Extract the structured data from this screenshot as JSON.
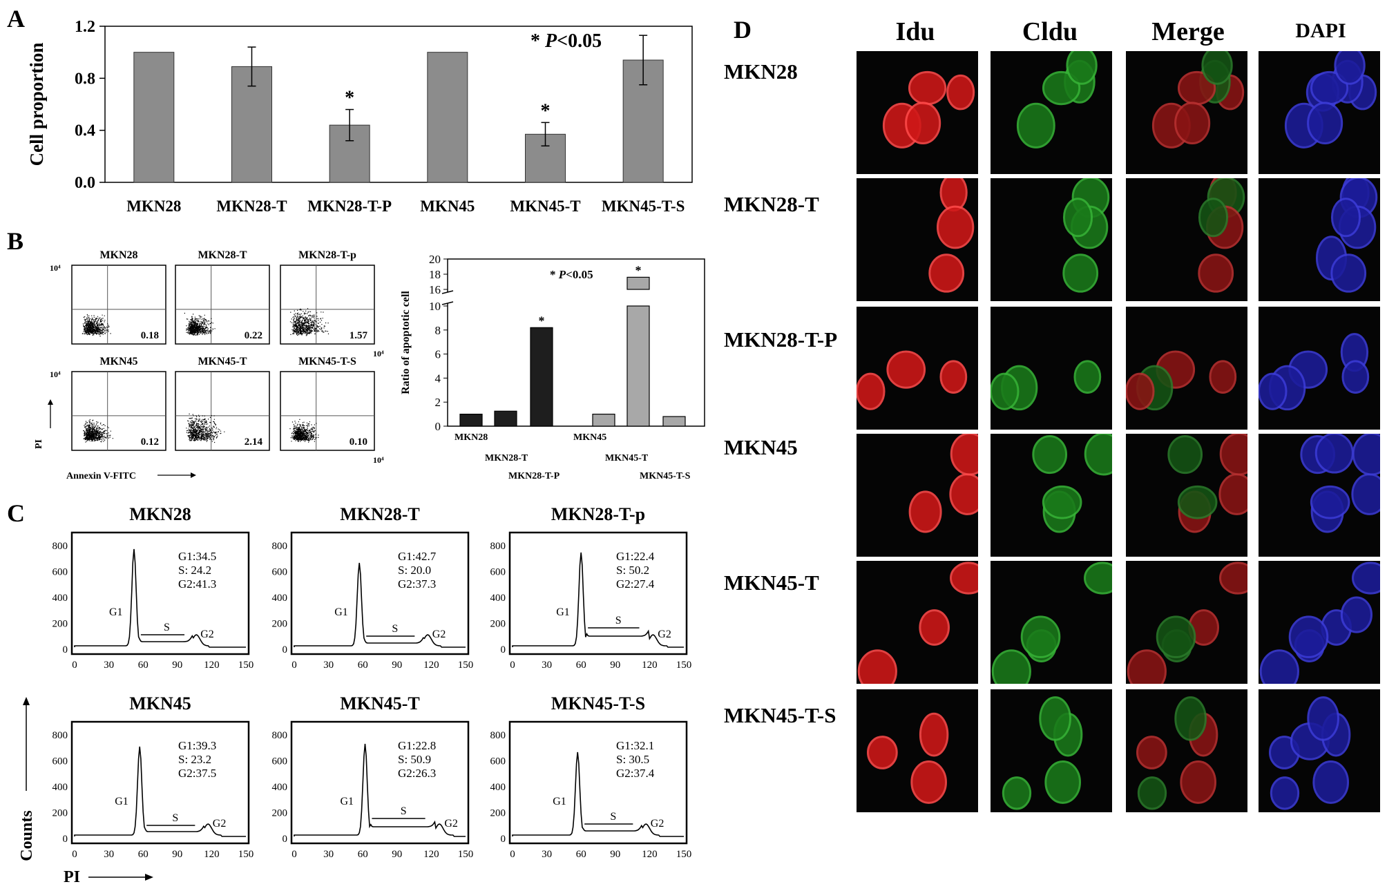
{
  "panels": {
    "a": "A",
    "b": "B",
    "c": "C",
    "d": "D"
  },
  "panel_a": {
    "chart_data": {
      "type": "bar",
      "categories": [
        "MKN28",
        "MKN28-T",
        "MKN28-T-P",
        "MKN45",
        "MKN45-T",
        "MKN45-T-S"
      ],
      "values": [
        1.0,
        0.89,
        0.44,
        1.0,
        0.37,
        0.94
      ],
      "errors": [
        0,
        0.15,
        0.12,
        0,
        0.09,
        0.19
      ],
      "significant": [
        false,
        false,
        true,
        false,
        true,
        false
      ],
      "ylabel": "Cell proportion",
      "ylim": [
        0,
        1.2
      ],
      "yticks": [
        "0.0",
        "0.4",
        "0.8",
        "1.2"
      ],
      "bar_color": "#8c8c8c",
      "star": "*",
      "annotation_prefix": "* ",
      "annotation_p": "P",
      "annotation_rest": "<0.05"
    }
  },
  "panel_b": {
    "flow": [
      {
        "title": "MKN28",
        "value": "0.18"
      },
      {
        "title": "MKN28-T",
        "value": "0.22"
      },
      {
        "title": "MKN28-T-p",
        "value": "1.57"
      },
      {
        "title": "MKN45",
        "value": "0.12"
      },
      {
        "title": "MKN45-T",
        "value": "2.14"
      },
      {
        "title": "MKN45-T-S",
        "value": "0.10"
      }
    ],
    "y_exp": "10⁴",
    "x_exp": "10⁴",
    "ylabel": "PI",
    "xlabel": "Annexin V-FITC",
    "chart_data": {
      "type": "bar",
      "categories": [
        "MKN28",
        "MKN28-T",
        "MKN28-T-P",
        "MKN45",
        "MKN45-T",
        "MKN45-T-S"
      ],
      "values": [
        1.0,
        1.25,
        8.2,
        1.0,
        17.6,
        0.8
      ],
      "colors": [
        "#1e1e1e",
        "#1e1e1e",
        "#1e1e1e",
        "#a8a8a8",
        "#a8a8a8",
        "#a8a8a8"
      ],
      "significant": [
        false,
        false,
        true,
        false,
        true,
        false
      ],
      "ylabel": "Ratio of apoptotic cell",
      "yticks_lower": [
        "0",
        "2",
        "4",
        "6",
        "8",
        "10"
      ],
      "yticks_upper": [
        "16",
        "18",
        "20"
      ],
      "ylim": [
        0,
        20
      ],
      "axis_break": [
        10,
        16
      ],
      "star": "*",
      "annotation_prefix": "* ",
      "annotation_p": "P",
      "annotation_rest": "<0.05"
    }
  },
  "panel_c": {
    "ylabel": "Counts",
    "xlabel": "PI",
    "yticks": [
      "0",
      "200",
      "400",
      "600",
      "800"
    ],
    "xticks": [
      "0",
      "30",
      "60",
      "90",
      "120",
      "150"
    ],
    "peak_labels": {
      "g1": "G1",
      "s": "S",
      "g2": "G2"
    },
    "histograms": [
      {
        "title": "MKN28",
        "g1": "G1:34.5",
        "s": "S:  24.2",
        "g2": "G2:41.3"
      },
      {
        "title": "MKN28-T",
        "g1": "G1:42.7",
        "s": "S:  20.0",
        "g2": "G2:37.3"
      },
      {
        "title": "MKN28-T-p",
        "g1": "G1:22.4",
        "s": "S:  50.2",
        "g2": "G2:27.4"
      },
      {
        "title": "MKN45",
        "g1": "G1:39.3",
        "s": "S:  23.2",
        "g2": "G2:37.5"
      },
      {
        "title": "MKN45-T",
        "g1": "G1:22.8",
        "s": "S:  50.9",
        "g2": "G2:26.3"
      },
      {
        "title": "MKN45-T-S",
        "g1": "G1:32.1",
        "s": "S:  30.5",
        "g2": "G2:37.4"
      }
    ]
  },
  "panel_d": {
    "columns": [
      "Idu",
      "Cldu",
      "Merge",
      "DAPI"
    ],
    "rows": [
      "MKN28",
      "MKN28-T",
      "MKN28-T-P",
      "MKN45",
      "MKN45-T",
      "MKN45-T-S"
    ]
  }
}
